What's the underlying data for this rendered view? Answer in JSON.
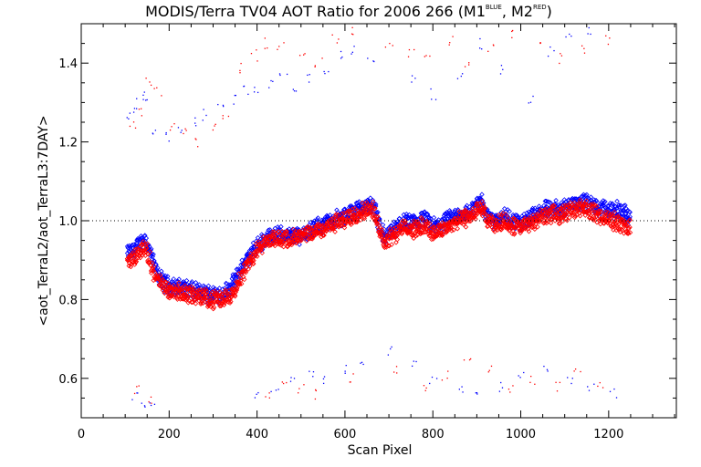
{
  "chart_data": {
    "type": "scatter",
    "title": {
      "main": "MODIS/Terra TV04 AOT Ratio for 2006 266 (M1",
      "sup1": "BLUE",
      "mid": ", M2",
      "sup2": "RED",
      "end": ")"
    },
    "xlabel": "Scan Pixel",
    "ylabel": "<aot_TerraL2/aot_TerraL3:7DAY>",
    "xlim": [
      0,
      1354
    ],
    "ylim": [
      0.5,
      1.5
    ],
    "xticks": [
      0,
      200,
      400,
      600,
      800,
      1000,
      1200
    ],
    "yticks": [
      0.6,
      0.8,
      1.0,
      1.2,
      1.4
    ],
    "reference_line": 1.0,
    "grid": false,
    "series": [
      {
        "name": "M1 BLUE",
        "color": "#0000ff",
        "marker": "diamond",
        "main_curve": [
          [
            105,
            0.915
          ],
          [
            120,
            0.925
          ],
          [
            135,
            0.945
          ],
          [
            145,
            0.955
          ],
          [
            160,
            0.91
          ],
          [
            170,
            0.87
          ],
          [
            185,
            0.845
          ],
          [
            200,
            0.835
          ],
          [
            220,
            0.83
          ],
          [
            240,
            0.83
          ],
          [
            260,
            0.82
          ],
          [
            280,
            0.815
          ],
          [
            300,
            0.815
          ],
          [
            320,
            0.815
          ],
          [
            340,
            0.83
          ],
          [
            360,
            0.87
          ],
          [
            380,
            0.905
          ],
          [
            400,
            0.935
          ],
          [
            420,
            0.955
          ],
          [
            440,
            0.965
          ],
          [
            460,
            0.965
          ],
          [
            480,
            0.96
          ],
          [
            500,
            0.965
          ],
          [
            520,
            0.975
          ],
          [
            540,
            0.985
          ],
          [
            560,
            0.995
          ],
          [
            580,
            1.005
          ],
          [
            600,
            1.01
          ],
          [
            620,
            1.025
          ],
          [
            640,
            1.035
          ],
          [
            660,
            1.04
          ],
          [
            670,
            1.025
          ],
          [
            680,
            0.985
          ],
          [
            690,
            0.955
          ],
          [
            700,
            0.97
          ],
          [
            720,
            0.985
          ],
          [
            740,
            1.0
          ],
          [
            760,
            0.99
          ],
          [
            780,
            1.005
          ],
          [
            800,
            0.985
          ],
          [
            820,
            0.99
          ],
          [
            840,
            1.005
          ],
          [
            860,
            1.015
          ],
          [
            880,
            1.02
          ],
          [
            900,
            1.04
          ],
          [
            910,
            1.05
          ],
          [
            920,
            1.02
          ],
          [
            940,
            1.0
          ],
          [
            960,
            1.015
          ],
          [
            980,
            1.0
          ],
          [
            1000,
            0.995
          ],
          [
            1020,
            1.005
          ],
          [
            1040,
            1.02
          ],
          [
            1060,
            1.03
          ],
          [
            1080,
            1.03
          ],
          [
            1100,
            1.035
          ],
          [
            1120,
            1.045
          ],
          [
            1140,
            1.05
          ],
          [
            1160,
            1.04
          ],
          [
            1180,
            1.03
          ],
          [
            1200,
            1.03
          ],
          [
            1220,
            1.025
          ],
          [
            1240,
            1.015
          ],
          [
            1250,
            1.01
          ]
        ],
        "outliers": [
          [
            110,
            1.27
          ],
          [
            125,
            1.29
          ],
          [
            135,
            1.31
          ],
          [
            150,
            1.32
          ],
          [
            170,
            1.22
          ],
          [
            195,
            1.21
          ],
          [
            225,
            1.23
          ],
          [
            255,
            1.25
          ],
          [
            285,
            1.27
          ],
          [
            315,
            1.3
          ],
          [
            345,
            1.31
          ],
          [
            375,
            1.33
          ],
          [
            400,
            1.34
          ],
          [
            430,
            1.35
          ],
          [
            460,
            1.37
          ],
          [
            490,
            1.33
          ],
          [
            520,
            1.36
          ],
          [
            560,
            1.38
          ],
          [
            590,
            1.42
          ],
          [
            620,
            1.43
          ],
          [
            660,
            1.4
          ],
          [
            760,
            1.36
          ],
          [
            800,
            1.32
          ],
          [
            860,
            1.36
          ],
          [
            910,
            1.45
          ],
          [
            960,
            1.38
          ],
          [
            1020,
            1.31
          ],
          [
            1070,
            1.43
          ],
          [
            1110,
            1.47
          ],
          [
            1160,
            1.48
          ],
          [
            120,
            0.56
          ],
          [
            140,
            0.54
          ],
          [
            160,
            0.53
          ],
          [
            400,
            0.55
          ],
          [
            440,
            0.57
          ],
          [
            480,
            0.59
          ],
          [
            520,
            0.61
          ],
          [
            560,
            0.6
          ],
          [
            600,
            0.62
          ],
          [
            640,
            0.63
          ],
          [
            700,
            0.67
          ],
          [
            760,
            0.64
          ],
          [
            800,
            0.6
          ],
          [
            860,
            0.58
          ],
          [
            900,
            0.55
          ],
          [
            950,
            0.58
          ],
          [
            1000,
            0.6
          ],
          [
            1060,
            0.63
          ],
          [
            1110,
            0.6
          ],
          [
            1160,
            0.58
          ],
          [
            1210,
            0.56
          ]
        ]
      },
      {
        "name": "M2 RED",
        "color": "#ff0000",
        "marker": "diamond",
        "main_curve": [
          [
            105,
            0.895
          ],
          [
            120,
            0.905
          ],
          [
            135,
            0.925
          ],
          [
            145,
            0.935
          ],
          [
            160,
            0.885
          ],
          [
            170,
            0.855
          ],
          [
            185,
            0.835
          ],
          [
            200,
            0.825
          ],
          [
            220,
            0.82
          ],
          [
            240,
            0.815
          ],
          [
            260,
            0.81
          ],
          [
            280,
            0.805
          ],
          [
            300,
            0.8
          ],
          [
            320,
            0.8
          ],
          [
            340,
            0.81
          ],
          [
            360,
            0.85
          ],
          [
            380,
            0.89
          ],
          [
            400,
            0.925
          ],
          [
            420,
            0.945
          ],
          [
            440,
            0.955
          ],
          [
            460,
            0.955
          ],
          [
            480,
            0.955
          ],
          [
            500,
            0.96
          ],
          [
            520,
            0.965
          ],
          [
            540,
            0.975
          ],
          [
            560,
            0.985
          ],
          [
            580,
            0.995
          ],
          [
            600,
            1.0
          ],
          [
            620,
            1.015
          ],
          [
            640,
            1.025
          ],
          [
            660,
            1.03
          ],
          [
            670,
            1.015
          ],
          [
            680,
            0.975
          ],
          [
            690,
            0.945
          ],
          [
            700,
            0.96
          ],
          [
            720,
            0.97
          ],
          [
            740,
            0.985
          ],
          [
            760,
            0.975
          ],
          [
            780,
            0.99
          ],
          [
            800,
            0.97
          ],
          [
            820,
            0.975
          ],
          [
            840,
            0.99
          ],
          [
            860,
            1.0
          ],
          [
            880,
            1.01
          ],
          [
            900,
            1.025
          ],
          [
            910,
            1.035
          ],
          [
            920,
            1.005
          ],
          [
            940,
            0.985
          ],
          [
            960,
            1.0
          ],
          [
            980,
            0.985
          ],
          [
            1000,
            0.985
          ],
          [
            1020,
            0.99
          ],
          [
            1040,
            1.005
          ],
          [
            1060,
            1.015
          ],
          [
            1080,
            1.015
          ],
          [
            1100,
            1.02
          ],
          [
            1120,
            1.03
          ],
          [
            1140,
            1.035
          ],
          [
            1160,
            1.025
          ],
          [
            1180,
            1.01
          ],
          [
            1200,
            1.005
          ],
          [
            1220,
            0.995
          ],
          [
            1240,
            0.985
          ],
          [
            1250,
            0.985
          ]
        ],
        "outliers": [
          [
            115,
            1.25
          ],
          [
            130,
            1.28
          ],
          [
            150,
            1.35
          ],
          [
            175,
            1.33
          ],
          [
            205,
            1.24
          ],
          [
            235,
            1.22
          ],
          [
            265,
            1.2
          ],
          [
            300,
            1.23
          ],
          [
            330,
            1.26
          ],
          [
            360,
            1.39
          ],
          [
            395,
            1.42
          ],
          [
            420,
            1.45
          ],
          [
            455,
            1.44
          ],
          [
            500,
            1.42
          ],
          [
            540,
            1.4
          ],
          [
            580,
            1.46
          ],
          [
            620,
            1.48
          ],
          [
            700,
            1.44
          ],
          [
            750,
            1.43
          ],
          [
            790,
            1.42
          ],
          [
            840,
            1.46
          ],
          [
            880,
            1.4
          ],
          [
            930,
            1.44
          ],
          [
            980,
            1.47
          ],
          [
            1040,
            1.45
          ],
          [
            1090,
            1.41
          ],
          [
            1140,
            1.44
          ],
          [
            1200,
            1.46
          ],
          [
            130,
            0.57
          ],
          [
            155,
            0.55
          ],
          [
            420,
            0.56
          ],
          [
            460,
            0.58
          ],
          [
            500,
            0.57
          ],
          [
            540,
            0.56
          ],
          [
            620,
            0.6
          ],
          [
            720,
            0.62
          ],
          [
            780,
            0.58
          ],
          [
            830,
            0.61
          ],
          [
            880,
            0.64
          ],
          [
            930,
            0.62
          ],
          [
            980,
            0.57
          ],
          [
            1030,
            0.6
          ],
          [
            1080,
            0.58
          ],
          [
            1130,
            0.61
          ],
          [
            1180,
            0.59
          ]
        ]
      }
    ]
  }
}
